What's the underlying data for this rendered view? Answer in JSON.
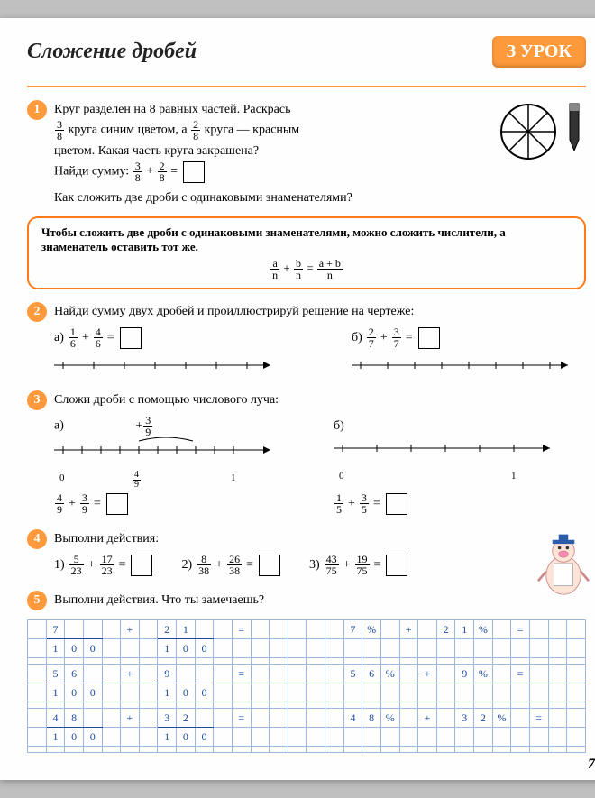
{
  "header": {
    "title": "Сложение дробей",
    "badge": "З УРОК"
  },
  "task1": {
    "num": "1",
    "text_l1": "Круг разделен на 8 равных частей. Раскрась",
    "text_l2_a": " круга синим цветом, а ",
    "text_l2_b": " круга — красным",
    "text_l3": "цветом. Какая часть круга закрашена?",
    "find_sum": "Найди сумму: ",
    "f1_n": "3",
    "f1_d": "8",
    "f2_n": "2",
    "f2_d": "8",
    "question": "Как сложить две дроби с одинаковыми знаменателями?",
    "circle_slices": 8
  },
  "rule": {
    "line1": "Чтобы сложить две дроби с одинаковыми знаменателями, можно сложить числители, а знаменатель оставить тот же.",
    "f_a": "a",
    "f_b": "b",
    "f_n": "n",
    "f_sum": "a + b"
  },
  "task2": {
    "num": "2",
    "text": "Найди сумму двух дробей и проиллюстрируй решение на чертеже:",
    "a_label": "а)",
    "a_f1_n": "1",
    "a_f1_d": "6",
    "a_f2_n": "4",
    "a_f2_d": "6",
    "b_label": "б)",
    "b_f1_n": "2",
    "b_f1_d": "7",
    "b_f2_n": "3",
    "b_f2_d": "7"
  },
  "task3": {
    "num": "3",
    "text": "Сложи дроби с помощью числового луча:",
    "a_label": "а)",
    "b_label": "б)",
    "a_top_n": "3",
    "a_top_d": "9",
    "a_mark_n": "4",
    "a_mark_d": "9",
    "zero": "0",
    "one": "1",
    "r1_f1_n": "4",
    "r1_f1_d": "9",
    "r1_f2_n": "3",
    "r1_f2_d": "9",
    "r2_f1_n": "1",
    "r2_f1_d": "5",
    "r2_f2_n": "3",
    "r2_f2_d": "5"
  },
  "task4": {
    "num": "4",
    "text": "Выполни действия:",
    "p1": "1)",
    "p1_f1_n": "5",
    "p1_f1_d": "23",
    "p1_f2_n": "17",
    "p1_f2_d": "23",
    "p2": "2)",
    "p2_f1_n": "8",
    "p2_f1_d": "38",
    "p2_f2_n": "26",
    "p2_f2_d": "38",
    "p3": "3)",
    "p3_f1_n": "43",
    "p3_f1_d": "75",
    "p3_f2_n": "19",
    "p3_f2_d": "75"
  },
  "task5": {
    "num": "5",
    "text": "Выполни действия. Что ты замечаешь?",
    "grid": {
      "cols": 30,
      "rows": [
        {
          "left_n": "7",
          "left_d": "100",
          "left2_n": "21",
          "left2_d": "100",
          "right": "7% + 21% ="
        },
        {
          "left_n": "56",
          "left_d": "100",
          "left2_n": "9",
          "left2_d": "100",
          "right": "56% + 9% ="
        },
        {
          "left_n": "48",
          "left_d": "100",
          "left2_n": "32",
          "left2_d": "100",
          "right": "48% + 32% ="
        }
      ]
    },
    "grid_colors": {
      "border": "#9bb8e0",
      "text": "#1a4a9c"
    }
  },
  "page_number": "7",
  "colors": {
    "accent": "#ff9a3c",
    "accent_dark": "#ff7a1a",
    "page_bg": "#fefefe",
    "body_bg": "#c0c0c0"
  }
}
